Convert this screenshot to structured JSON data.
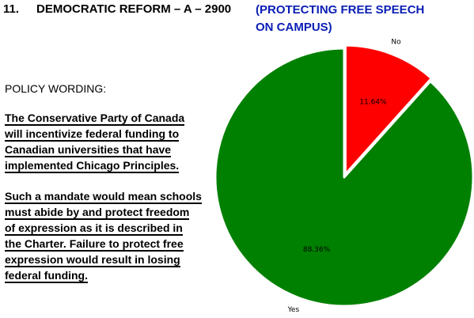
{
  "header": {
    "number": "11.",
    "title": "DEMOCRATIC REFORM – A – 2900",
    "subtitle_line1": "(PROTECTING FREE SPEECH",
    "subtitle_line2": "ON CAMPUS)"
  },
  "policy": {
    "label": "POLICY WORDING:",
    "paragraph1": [
      "The Conservative Party of Canada",
      "will incentivize federal funding to",
      "Canadian universities that have",
      "implemented Chicago Principles."
    ],
    "paragraph2": [
      "Such a mandate would mean schools",
      "must abide by and protect freedom",
      "of expression as it is described in",
      "the Charter. Failure to protect free",
      "expression would result in losing",
      "federal funding."
    ]
  },
  "chart_data": {
    "type": "pie",
    "slices": [
      {
        "label": "No",
        "value": 11.64,
        "pct_label": "11.64%",
        "color": "#ff0000"
      },
      {
        "label": "Yes",
        "value": 88.36,
        "pct_label": "88.36%",
        "color": "#008000"
      }
    ],
    "start_angle_deg": 90,
    "direction": "clockwise",
    "explode": [
      "No"
    ],
    "edge_color": "#ffffff"
  }
}
